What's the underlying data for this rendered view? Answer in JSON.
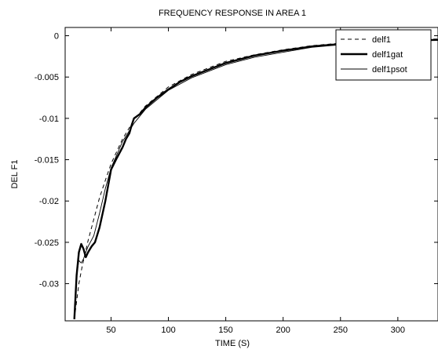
{
  "chart_data": {
    "type": "line",
    "title": "FREQUENCY RESPONSE IN AREA 1",
    "xlabel": "TIME (S)",
    "ylabel": "DEL F1",
    "xlim": [
      10,
      335
    ],
    "ylim": [
      -0.0345,
      0.001
    ],
    "xticks": [
      50,
      100,
      150,
      200,
      250,
      300
    ],
    "yticks": [
      0,
      -0.005,
      -0.01,
      -0.015,
      -0.02,
      -0.025,
      -0.03
    ],
    "xtick_labels": [
      "50",
      "100",
      "150",
      "200",
      "250",
      "300"
    ],
    "ytick_labels": [
      "0",
      "-0.005",
      "-0.01",
      "-0.015",
      "-0.02",
      "-0.025",
      "-0.03"
    ],
    "grid": false,
    "legend_position": "top-right",
    "series": [
      {
        "name": "delf1",
        "style": "dashed",
        "x": [
          18,
          22,
          25,
          30,
          35,
          40,
          45,
          50,
          60,
          70,
          80,
          100,
          120,
          150,
          175,
          200,
          225,
          250,
          275,
          300,
          335
        ],
        "y": [
          -0.0343,
          -0.03,
          -0.0278,
          -0.0248,
          -0.0222,
          -0.0196,
          -0.0175,
          -0.0155,
          -0.0125,
          -0.0102,
          -0.0085,
          -0.0062,
          -0.0047,
          -0.0031,
          -0.0023,
          -0.0017,
          -0.0012,
          -0.0009,
          -0.0007,
          -0.0005,
          -0.0004
        ]
      },
      {
        "name": "delf1gat",
        "style": "thick",
        "x": [
          18,
          20,
          22,
          24,
          26,
          28,
          30,
          33,
          36,
          40,
          45,
          50,
          55,
          60,
          63,
          66,
          68,
          70,
          75,
          80,
          90,
          100,
          110,
          120,
          150,
          175,
          200,
          225,
          250,
          275,
          300,
          335
        ],
        "y": [
          -0.0343,
          -0.029,
          -0.0262,
          -0.0252,
          -0.0258,
          -0.0268,
          -0.0262,
          -0.0255,
          -0.025,
          -0.0232,
          -0.02,
          -0.0162,
          -0.0148,
          -0.0135,
          -0.0125,
          -0.0118,
          -0.0108,
          -0.01,
          -0.0095,
          -0.0087,
          -0.0075,
          -0.0065,
          -0.0056,
          -0.0049,
          -0.0033,
          -0.0024,
          -0.0018,
          -0.0013,
          -0.001,
          -0.0008,
          -0.0006,
          -0.0005
        ]
      },
      {
        "name": "delf1psot",
        "style": "thin",
        "x": [
          18,
          20,
          22,
          24,
          26,
          28,
          30,
          35,
          40,
          45,
          50,
          60,
          70,
          80,
          100,
          120,
          150,
          175,
          200,
          225,
          250,
          275,
          300,
          335
        ],
        "y": [
          -0.0343,
          -0.029,
          -0.0272,
          -0.0275,
          -0.027,
          -0.0262,
          -0.0255,
          -0.0242,
          -0.0215,
          -0.0185,
          -0.016,
          -0.0128,
          -0.0106,
          -0.0089,
          -0.0066,
          -0.0051,
          -0.0035,
          -0.0026,
          -0.002,
          -0.0014,
          -0.0011,
          -0.0008,
          -0.0006,
          -0.0005
        ]
      }
    ]
  }
}
